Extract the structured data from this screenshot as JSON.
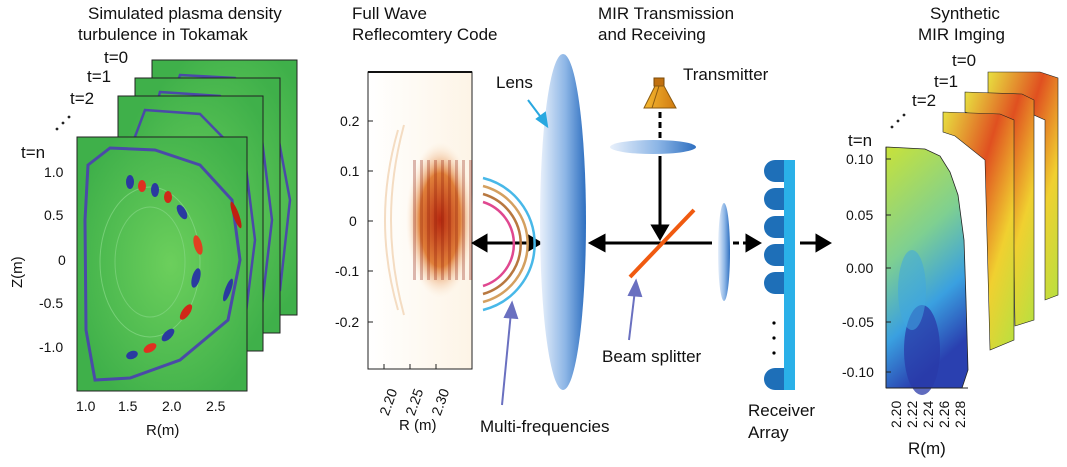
{
  "panel1": {
    "title_line1": "Simulated plasma density",
    "title_line2": "turbulence in Tokamak",
    "time_labels": [
      "t=0",
      "t=1",
      "t=2",
      "t=n"
    ],
    "y_ticks": [
      "1.0",
      "0.5",
      "0",
      "-0.5",
      "-1.0"
    ],
    "x_ticks": [
      "1.0",
      "1.5",
      "2.0",
      "2.5"
    ],
    "ylabel": "Z(m)",
    "xlabel": "R(m)"
  },
  "panel2": {
    "title_line1": "Full Wave",
    "title_line2": "Reflecomtery Code",
    "y_ticks": [
      "0.2",
      "0.1",
      "0",
      "-0.1",
      "-0.2"
    ],
    "x_ticks": [
      "2.20",
      "2.25",
      "2.30"
    ],
    "xlabel": "R (m)"
  },
  "optics": {
    "lens_label": "Lens",
    "multifreq_label": "Multi-frequencies"
  },
  "panel3": {
    "title_line1": "MIR Transmission",
    "title_line2": "and Receiving",
    "transmitter_label": "Transmitter",
    "beam_splitter_label": "Beam splitter",
    "receiver_line1": "Receiver",
    "receiver_line2": "Array"
  },
  "panel4": {
    "title_line1": "Synthetic",
    "title_line2": "MIR Imging",
    "time_labels": [
      "t=0",
      "t=1",
      "t=2",
      "t=n"
    ],
    "y_ticks": [
      "0.10",
      "0.05",
      "0.00",
      "-0.05",
      "-0.10"
    ],
    "x_ticks": [
      "2.20",
      "2.22",
      "2.24",
      "2.26",
      "2.28"
    ],
    "xlabel": "R(m)"
  },
  "colors": {
    "plasma_green": "#4cbb4c",
    "contour_blue": "#4a4aa8",
    "lens_blue": "#3a7cc8",
    "receiver_blue": "#1e6fb8",
    "splitter_orange": "#f05a10",
    "transmitter_orange": "#f2a020",
    "annotation_blue": "#6a70c0"
  }
}
